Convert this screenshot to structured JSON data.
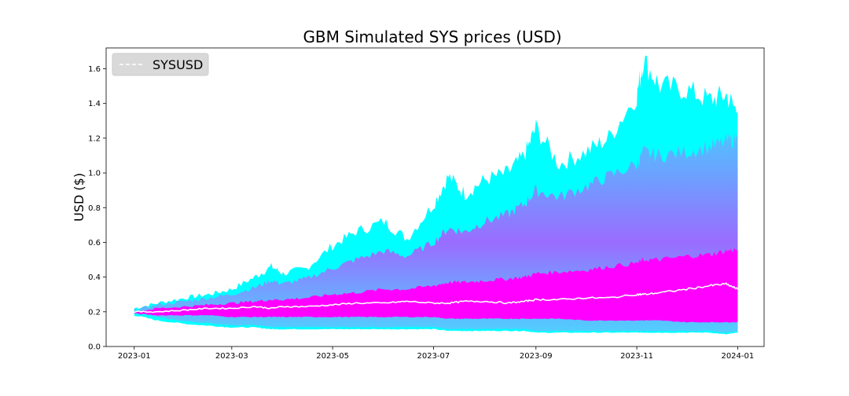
{
  "chart_data": {
    "type": "area",
    "title": "GBM Simulated SYS prices (USD)",
    "xlabel": "",
    "ylabel": "USD ($)",
    "x_ticks": [
      "2023-01",
      "2023-03",
      "2023-05",
      "2023-07",
      "2023-09",
      "2023-11",
      "2024-01"
    ],
    "y_ticks": [
      "0.0",
      "0.2",
      "0.4",
      "0.6",
      "0.8",
      "1.0",
      "1.2",
      "1.4",
      "1.6"
    ],
    "ylim": [
      0.0,
      1.72
    ],
    "xlim": [
      "2022-12-15",
      "2024-01-17"
    ],
    "grid": false,
    "legend": {
      "position": "top-left",
      "entries": [
        {
          "name": "SYSUSD",
          "style": "dashed",
          "color": "#ffffff"
        }
      ]
    },
    "colors": {
      "outer": "#00ffff",
      "inner": "#ff00ff",
      "mean": "#ffffff",
      "legend_bg": "#d9d9d9"
    },
    "envelope": {
      "dates": [
        "2023-01-01",
        "2023-01-15",
        "2023-02-01",
        "2023-02-15",
        "2023-03-01",
        "2023-03-15",
        "2023-03-25",
        "2023-04-01",
        "2023-04-15",
        "2023-05-01",
        "2023-05-15",
        "2023-06-01",
        "2023-06-15",
        "2023-07-01",
        "2023-07-10",
        "2023-07-20",
        "2023-08-01",
        "2023-08-15",
        "2023-08-25",
        "2023-09-01",
        "2023-09-15",
        "2023-10-01",
        "2023-10-15",
        "2023-11-01",
        "2023-11-05",
        "2023-11-15",
        "2023-12-01",
        "2023-12-15",
        "2023-12-25",
        "2024-01-01"
      ],
      "max": [
        0.22,
        0.25,
        0.28,
        0.3,
        0.33,
        0.4,
        0.46,
        0.42,
        0.45,
        0.58,
        0.66,
        0.72,
        0.62,
        0.82,
        0.98,
        0.88,
        0.96,
        1.0,
        1.1,
        1.26,
        1.05,
        1.12,
        1.2,
        1.45,
        1.65,
        1.5,
        1.48,
        1.42,
        1.45,
        1.35
      ],
      "p95": [
        0.21,
        0.24,
        0.26,
        0.28,
        0.3,
        0.34,
        0.38,
        0.36,
        0.39,
        0.45,
        0.5,
        0.55,
        0.52,
        0.6,
        0.68,
        0.66,
        0.72,
        0.76,
        0.82,
        0.9,
        0.86,
        0.92,
        0.98,
        1.05,
        1.12,
        1.1,
        1.12,
        1.15,
        1.18,
        1.2
      ],
      "p75": [
        0.2,
        0.22,
        0.23,
        0.24,
        0.25,
        0.26,
        0.27,
        0.27,
        0.28,
        0.3,
        0.31,
        0.33,
        0.33,
        0.35,
        0.37,
        0.37,
        0.38,
        0.39,
        0.4,
        0.42,
        0.43,
        0.44,
        0.46,
        0.48,
        0.5,
        0.5,
        0.52,
        0.53,
        0.55,
        0.56
      ],
      "mean": [
        0.2,
        0.2,
        0.21,
        0.22,
        0.22,
        0.23,
        0.22,
        0.23,
        0.23,
        0.24,
        0.25,
        0.25,
        0.26,
        0.25,
        0.25,
        0.26,
        0.26,
        0.25,
        0.26,
        0.27,
        0.27,
        0.28,
        0.28,
        0.3,
        0.3,
        0.31,
        0.33,
        0.35,
        0.36,
        0.33
      ],
      "p25": [
        0.19,
        0.18,
        0.18,
        0.18,
        0.17,
        0.17,
        0.17,
        0.17,
        0.17,
        0.17,
        0.17,
        0.17,
        0.17,
        0.17,
        0.16,
        0.16,
        0.16,
        0.16,
        0.16,
        0.16,
        0.16,
        0.15,
        0.15,
        0.15,
        0.15,
        0.15,
        0.14,
        0.14,
        0.14,
        0.14
      ],
      "min": [
        0.18,
        0.15,
        0.13,
        0.12,
        0.11,
        0.11,
        0.1,
        0.1,
        0.1,
        0.1,
        0.1,
        0.1,
        0.1,
        0.1,
        0.09,
        0.09,
        0.09,
        0.09,
        0.09,
        0.08,
        0.08,
        0.08,
        0.08,
        0.08,
        0.08,
        0.08,
        0.08,
        0.08,
        0.07,
        0.08
      ]
    }
  }
}
